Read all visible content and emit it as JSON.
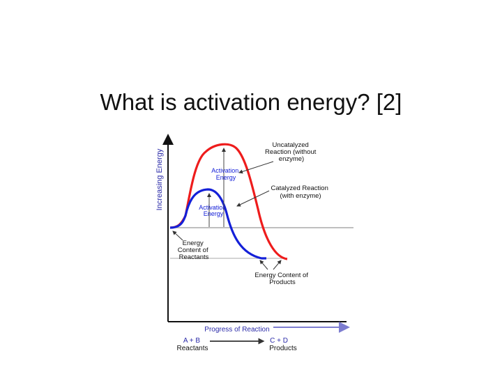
{
  "slide": {
    "title": "What is activation energy? [2]"
  },
  "diagram": {
    "y_axis_label": "Increasing Energy",
    "x_axis_label": "Progress of Reaction",
    "reactants_eq": "A + B",
    "reactants_label": "Reactants",
    "products_eq": "C + D",
    "products_label": "Products",
    "uncatalyzed_label": [
      "Uncatalyzed",
      "Reaction (without",
      "enzyme)"
    ],
    "catalyzed_label": [
      "Catalyzed Reaction",
      "(with enzyme)"
    ],
    "activation_energy_uncatalyzed": [
      "Activation",
      "Energy"
    ],
    "activation_energy_catalyzed": [
      "Activation",
      "Energy"
    ],
    "reactant_energy_label": [
      "Energy",
      "Content of",
      "Reactants"
    ],
    "product_energy_label": [
      "Energy Content of",
      "Products"
    ],
    "colors": {
      "uncatalyzed": "#ee1c1c",
      "catalyzed": "#1420d8",
      "axis_labels": "#2a2aa8",
      "arrow": "#7d7dd0",
      "axis": "#111111",
      "baseline": "#aaaaaa"
    }
  }
}
